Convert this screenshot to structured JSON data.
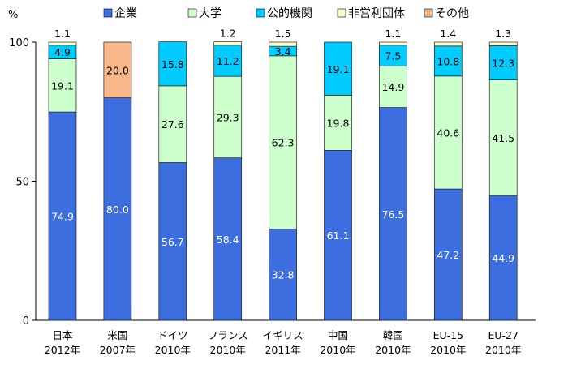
{
  "chart_data": {
    "type": "bar",
    "stacked": true,
    "ylabel": "%",
    "ylim": [
      0,
      100
    ],
    "yticks": [
      0,
      50,
      100
    ],
    "grid": false,
    "legend_position": "top",
    "categories": [
      [
        "日本",
        "2012年"
      ],
      [
        "米国",
        "2007年"
      ],
      [
        "ドイツ",
        "2010年"
      ],
      [
        "フランス",
        "2010年"
      ],
      [
        "イギリス",
        "2011年"
      ],
      [
        "中国",
        "2010年"
      ],
      [
        "韓国",
        "2010年"
      ],
      [
        "EU-15",
        "2010年"
      ],
      [
        "EU-27",
        "2010年"
      ]
    ],
    "series": [
      {
        "name": "企業",
        "color": "#3d6ee0",
        "label_color": "#ffffff",
        "values": [
          74.9,
          80.0,
          56.7,
          58.4,
          32.8,
          61.1,
          76.5,
          47.2,
          44.9
        ],
        "labels": [
          "74.9",
          "80.0",
          "56.7",
          "58.4",
          "32.8",
          "61.1",
          "76.5",
          "47.2",
          "44.9"
        ]
      },
      {
        "name": "大学",
        "color": "#ccffcc",
        "label_color": "#000000",
        "values": [
          19.1,
          0,
          27.6,
          29.3,
          62.3,
          19.8,
          14.9,
          40.6,
          41.5
        ],
        "labels": [
          "19.1",
          null,
          "27.6",
          "29.3",
          "62.3",
          "19.8",
          "14.9",
          "40.6",
          "41.5"
        ]
      },
      {
        "name": "公的機関",
        "color": "#00ccff",
        "label_color": "#000000",
        "values": [
          4.9,
          0,
          15.8,
          11.2,
          3.4,
          19.1,
          7.5,
          10.8,
          12.3
        ],
        "labels": [
          "4.9",
          null,
          "15.8",
          "11.2",
          "3.4",
          "19.1",
          "7.5",
          "10.8",
          "12.3"
        ]
      },
      {
        "name": "非営利団体",
        "color": "#ffffcc",
        "label_color": "#000000",
        "values": [
          1.1,
          0,
          0,
          1.2,
          1.5,
          0,
          1.1,
          1.4,
          1.3
        ],
        "labels": [
          "1.1",
          null,
          null,
          "1.2",
          "1.5",
          null,
          "1.1",
          "1.4",
          "1.3"
        ]
      },
      {
        "name": "その他",
        "color": "#f9b889",
        "label_color": "#000000",
        "values": [
          0,
          20.0,
          0,
          0,
          0,
          0,
          0,
          0,
          0
        ],
        "labels": [
          null,
          "20.0",
          null,
          null,
          null,
          null,
          null,
          null,
          null
        ]
      }
    ]
  }
}
